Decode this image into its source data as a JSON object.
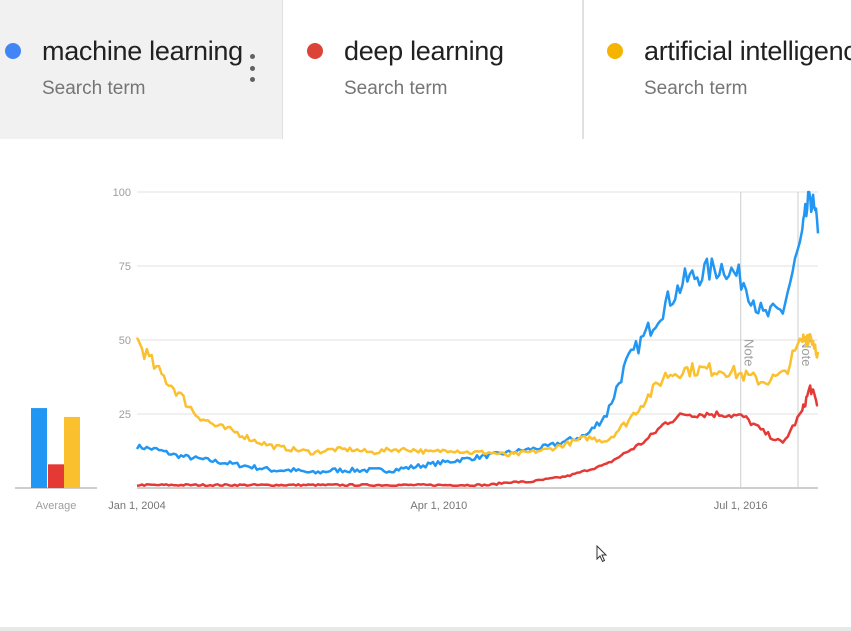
{
  "terms": [
    {
      "label": "machine learning",
      "sub": "Search term",
      "color": "#4285f4"
    },
    {
      "label": "deep learning",
      "sub": "Search term",
      "color": "#db4437"
    },
    {
      "label": "artificial intelligence",
      "sub": "Search term",
      "color": "#f4b400"
    }
  ],
  "chart_data": [
    {
      "type": "bar",
      "xlabel": "Average",
      "categories": [
        "machine learning",
        "deep learning",
        "artificial intelligence"
      ],
      "values": [
        27,
        8,
        24
      ],
      "colors": [
        "#2196f3",
        "#e53935",
        "#fbc02d"
      ],
      "ylim": [
        0,
        100
      ]
    },
    {
      "type": "line",
      "title": "",
      "xlabel": "",
      "ylabel": "",
      "ylim": [
        0,
        100
      ],
      "grid": true,
      "yticks": [
        25,
        50,
        75,
        100
      ],
      "xticks": [
        {
          "label": "Jan 1, 2004",
          "x": 2004.0
        },
        {
          "label": "Apr 1, 2010",
          "x": 2010.25
        },
        {
          "label": "Jul 1, 2016",
          "x": 2016.5
        }
      ],
      "xlim": [
        2004.0,
        2018.1
      ],
      "notes": [
        {
          "label": "Note",
          "x": 2016.5
        },
        {
          "label": "Note",
          "x": 2021.0
        }
      ],
      "series": [
        {
          "name": "machine learning",
          "color": "#2196f3",
          "x": [
            2004.0,
            2004.5,
            2005.0,
            2005.5,
            2006.0,
            2006.5,
            2007.0,
            2007.5,
            2008.0,
            2008.5,
            2009.0,
            2009.5,
            2010.0,
            2010.5,
            2011.0,
            2011.5,
            2012.0,
            2012.5,
            2013.0,
            2013.5,
            2014.0,
            2014.5,
            2015.0,
            2015.5,
            2016.0,
            2016.5,
            2017.0,
            2017.5,
            2018.0,
            2018.5,
            2019.0,
            2019.5,
            2020.0,
            2020.5,
            2021.0,
            2021.2,
            2021.4
          ],
          "values": [
            14,
            13,
            11,
            10,
            9,
            8,
            7,
            6,
            6,
            5,
            6,
            6,
            6,
            6,
            7,
            8,
            9,
            10,
            11,
            12,
            13,
            14,
            16,
            18,
            25,
            42,
            52,
            62,
            70,
            73,
            75,
            70,
            58,
            60,
            85,
            100,
            86
          ]
        },
        {
          "name": "deep learning",
          "color": "#e53935",
          "x": [
            2004.0,
            2004.5,
            2005.0,
            2005.5,
            2006.0,
            2006.5,
            2007.0,
            2007.5,
            2008.0,
            2008.5,
            2009.0,
            2009.5,
            2010.0,
            2010.5,
            2011.0,
            2011.5,
            2012.0,
            2012.5,
            2013.0,
            2013.5,
            2014.0,
            2014.5,
            2015.0,
            2015.5,
            2016.0,
            2016.5,
            2017.0,
            2017.5,
            2018.0,
            2018.5,
            2019.0,
            2019.5,
            2020.0,
            2020.5,
            2021.0,
            2021.2,
            2021.4
          ],
          "values": [
            1,
            1,
            1,
            1,
            1,
            1,
            1,
            1,
            1,
            1,
            1,
            1,
            1,
            1,
            1,
            1,
            1,
            1,
            1,
            2,
            2,
            3,
            4,
            6,
            8,
            12,
            16,
            22,
            25,
            25,
            25,
            24,
            19,
            15,
            26,
            34,
            28
          ]
        },
        {
          "name": "artificial intelligence",
          "color": "#fbc02d",
          "x": [
            2004.0,
            2004.5,
            2005.0,
            2005.5,
            2006.0,
            2006.5,
            2007.0,
            2007.5,
            2008.0,
            2008.5,
            2009.0,
            2009.5,
            2010.0,
            2010.5,
            2011.0,
            2011.5,
            2012.0,
            2012.5,
            2013.0,
            2013.5,
            2014.0,
            2014.5,
            2015.0,
            2015.5,
            2016.0,
            2016.5,
            2017.0,
            2017.5,
            2018.0,
            2018.5,
            2019.0,
            2019.5,
            2020.0,
            2020.5,
            2021.0,
            2021.2,
            2021.4
          ],
          "values": [
            50,
            40,
            33,
            25,
            21,
            19,
            16,
            14,
            13,
            12,
            13,
            13,
            12,
            13,
            13,
            12,
            13,
            12,
            12,
            11,
            12,
            13,
            15,
            17,
            16,
            22,
            30,
            38,
            40,
            40,
            40,
            38,
            36,
            38,
            50,
            52,
            46
          ]
        }
      ]
    }
  ]
}
